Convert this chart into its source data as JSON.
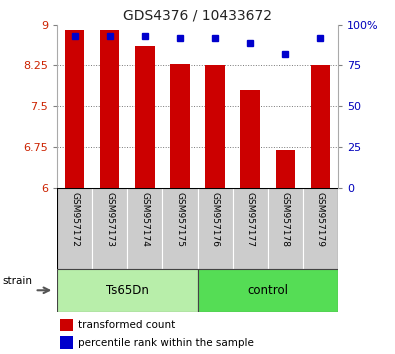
{
  "title": "GDS4376 / 10433672",
  "samples": [
    "GSM957172",
    "GSM957173",
    "GSM957174",
    "GSM957175",
    "GSM957176",
    "GSM957177",
    "GSM957178",
    "GSM957179"
  ],
  "red_values": [
    8.9,
    8.9,
    8.6,
    8.28,
    8.26,
    7.8,
    6.69,
    8.25
  ],
  "blue_values": [
    93,
    93,
    93,
    92,
    92,
    89,
    82,
    92
  ],
  "groups": [
    {
      "label": "Ts65Dn",
      "start": 0,
      "end": 4,
      "color": "#b8eeaa"
    },
    {
      "label": "control",
      "start": 4,
      "end": 8,
      "color": "#55dd55"
    }
  ],
  "strain_label": "strain",
  "ylim_left": [
    6,
    9
  ],
  "ylim_right": [
    0,
    100
  ],
  "yticks_left": [
    6,
    6.75,
    7.5,
    8.25,
    9
  ],
  "ytick_labels_left": [
    "6",
    "6.75",
    "7.5",
    "8.25",
    "9"
  ],
  "yticks_right": [
    0,
    25,
    50,
    75,
    100
  ],
  "ytick_labels_right": [
    "0",
    "25",
    "50",
    "75",
    "100%"
  ],
  "bar_color": "#cc0000",
  "dot_color": "#0000cc",
  "bar_bottom": 6,
  "legend_red": "transformed count",
  "legend_blue": "percentile rank within the sample",
  "tick_label_color_left": "#cc2200",
  "tick_label_color_right": "#0000bb",
  "grid_color": "#777777",
  "bar_width": 0.55,
  "dot_size": 4,
  "grid_ticks": [
    6.75,
    7.5,
    8.25
  ]
}
